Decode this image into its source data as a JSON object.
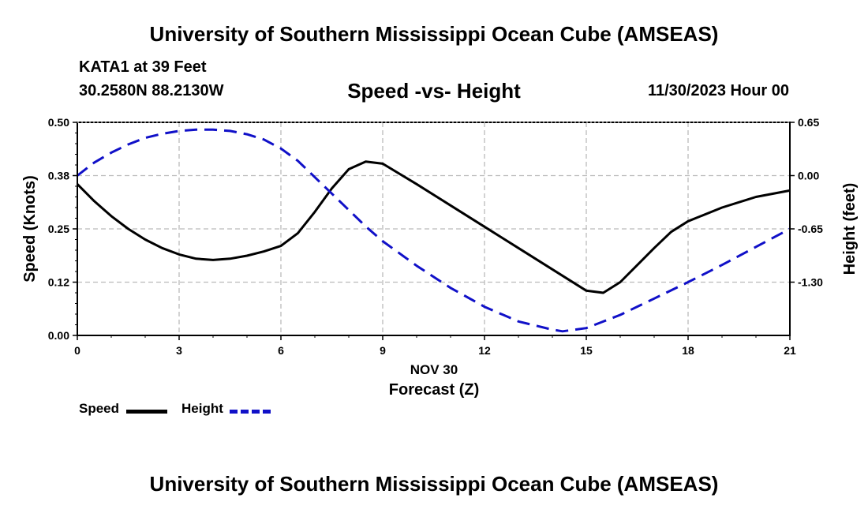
{
  "header": {
    "title": "University of Southern Mississippi Ocean Cube (AMSEAS)",
    "station": "KATA1 at 39 Feet",
    "coords": "30.2580N  88.2130W",
    "subtitle": "Speed -vs- Height",
    "datetime": "11/30/2023 Hour 00"
  },
  "footer": {
    "title": "University of Southern Mississippi Ocean Cube (AMSEAS)"
  },
  "legend": {
    "speed_label": "Speed",
    "height_label": "Height"
  },
  "colors": {
    "speed": "#000000",
    "height": "#1010c8",
    "grid": "#bbbbbb"
  },
  "chart_data": {
    "type": "line",
    "title": "Speed -vs- Height",
    "xlabel": "Forecast (Z)",
    "xlabel_date": "NOV 30",
    "ylabel": "Speed (Knots)",
    "y2label": "Height (feet)",
    "xlim": [
      0,
      21
    ],
    "ylim": [
      0,
      0.5
    ],
    "y2lim": [
      -1.95,
      0.65
    ],
    "x_ticks": [
      0,
      3,
      6,
      9,
      12,
      15,
      18,
      21
    ],
    "x_tick_labels": [
      "0",
      "3",
      "6",
      "9",
      "12",
      "15",
      "18",
      "21"
    ],
    "y_ticks": [
      0,
      0.125,
      0.25,
      0.375,
      0.5
    ],
    "y_tick_labels": [
      "0.00",
      "0.12",
      "0.25",
      "0.38",
      "0.50"
    ],
    "y2_ticks": [
      -1.3,
      -0.65,
      0.0,
      0.65
    ],
    "y2_tick_labels": [
      "-1.30",
      "-0.65",
      "0.00",
      "0.65"
    ],
    "grid": true,
    "series": [
      {
        "name": "Speed",
        "axis": "left",
        "style": "solid",
        "x": [
          0,
          0.5,
          1,
          1.5,
          2,
          2.5,
          3,
          3.5,
          4,
          4.5,
          5,
          5.5,
          6,
          6.5,
          7,
          7.5,
          8,
          8.5,
          9,
          10,
          11,
          12,
          13,
          14,
          15,
          15.5,
          16,
          16.5,
          17,
          17.5,
          18,
          19,
          20,
          21
        ],
        "values": [
          0.355,
          0.315,
          0.28,
          0.25,
          0.225,
          0.205,
          0.19,
          0.18,
          0.177,
          0.18,
          0.187,
          0.197,
          0.21,
          0.24,
          0.29,
          0.345,
          0.39,
          0.408,
          0.403,
          0.355,
          0.305,
          0.255,
          0.205,
          0.155,
          0.105,
          0.1,
          0.125,
          0.165,
          0.205,
          0.243,
          0.268,
          0.3,
          0.325,
          0.34
        ]
      },
      {
        "name": "Height",
        "axis": "right",
        "style": "dashed",
        "x": [
          0,
          0.5,
          1,
          1.5,
          2,
          2.5,
          3,
          3.5,
          4,
          4.5,
          5,
          5.5,
          6,
          6.5,
          7,
          7.5,
          8,
          8.5,
          9,
          10,
          11,
          12,
          13,
          14,
          14.3,
          15,
          16,
          17,
          18,
          19,
          20,
          21
        ],
        "values": [
          0.0,
          0.16,
          0.28,
          0.38,
          0.46,
          0.51,
          0.545,
          0.56,
          0.56,
          0.545,
          0.505,
          0.44,
          0.33,
          0.18,
          -0.02,
          -0.22,
          -0.42,
          -0.62,
          -0.8,
          -1.1,
          -1.37,
          -1.6,
          -1.78,
          -1.88,
          -1.9,
          -1.86,
          -1.7,
          -1.5,
          -1.3,
          -1.09,
          -0.87,
          -0.65
        ]
      }
    ]
  }
}
